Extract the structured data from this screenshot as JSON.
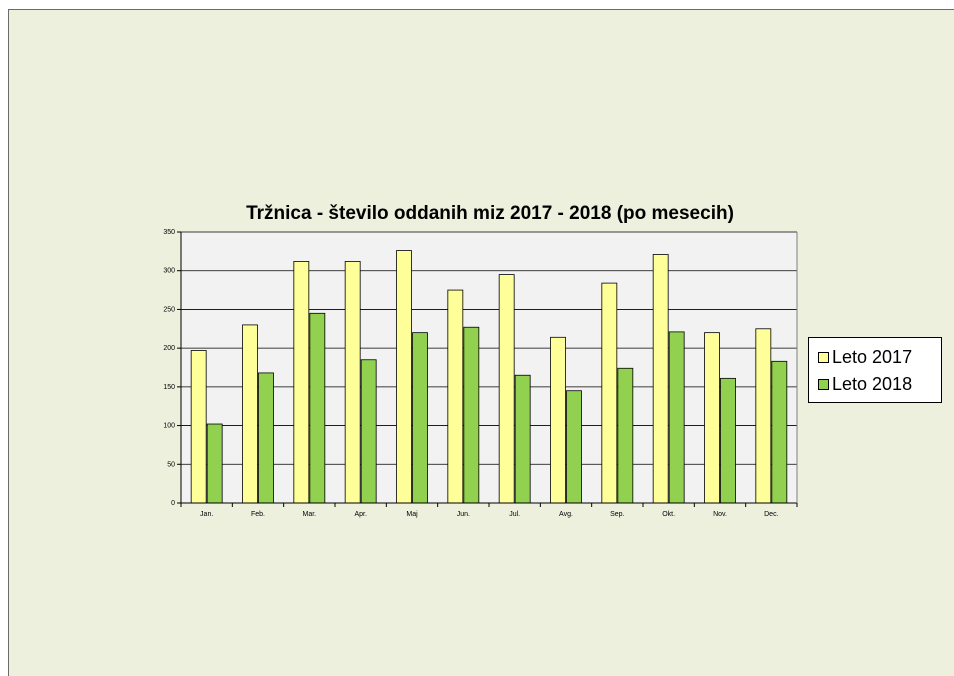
{
  "chart_data": {
    "type": "bar",
    "title": "Tržnica - število oddanih miz  2017 - 2018 (po mesecih)",
    "xlabel": "",
    "ylabel": "",
    "categories": [
      "Jan.",
      "Feb.",
      "Mar.",
      "Apr.",
      "Maj",
      "Jun.",
      "Jul.",
      "Avg.",
      "Sep.",
      "Okt.",
      "Nov.",
      "Dec."
    ],
    "series": [
      {
        "name": "Leto 2017",
        "color": "#ffff99",
        "values": [
          197,
          230,
          312,
          312,
          326,
          275,
          295,
          214,
          284,
          321,
          220,
          225
        ]
      },
      {
        "name": "Leto 2018",
        "color": "#92d050",
        "values": [
          102,
          168,
          245,
          185,
          220,
          227,
          165,
          145,
          174,
          221,
          161,
          183
        ]
      }
    ],
    "ylim": [
      0,
      350
    ],
    "yticks": [
      0,
      50,
      100,
      150,
      200,
      250,
      300,
      350
    ],
    "grid": true,
    "legend_position": "right"
  }
}
